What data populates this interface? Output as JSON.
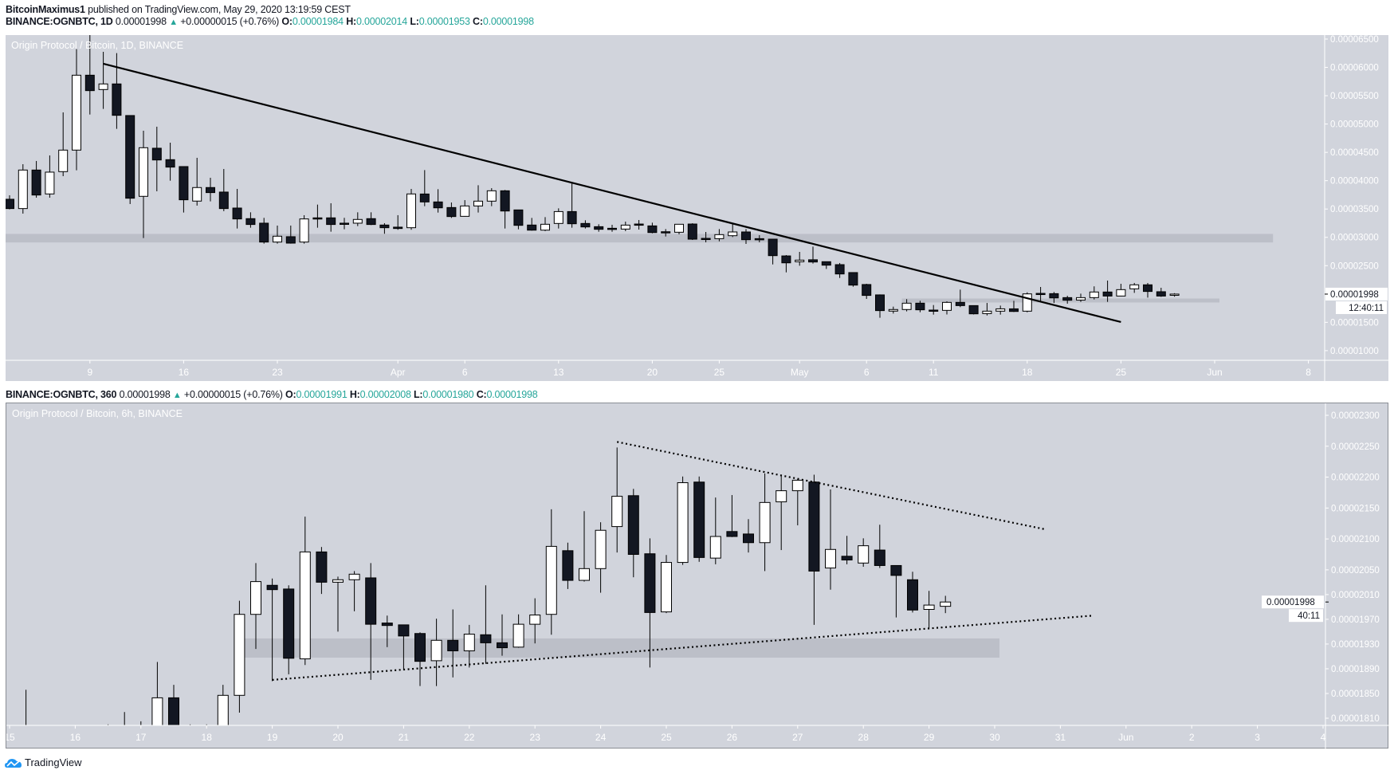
{
  "publish_line": {
    "author": "BitcoinMaximus1",
    "text": "published on TradingView.com, May 29, 2020 13:19:59 CEST"
  },
  "legend_1d": {
    "symbol": "BINANCE:OGNBTC, 1D",
    "last": "0.00001998",
    "change": "+0.00000015 (+0.76%)",
    "o_label": "O:",
    "o": "0.00001984",
    "h_label": "H:",
    "h": "0.00002014",
    "l_label": "L:",
    "l": "0.00001953",
    "c_label": "C:",
    "c": "0.00001998"
  },
  "legend_6h": {
    "symbol": "BINANCE:OGNBTC, 360",
    "last": "0.00001998",
    "change": "+0.00000015 (+0.76%)",
    "o_label": "O:",
    "o": "0.00001991",
    "h_label": "H:",
    "h": "0.00002008",
    "l_label": "L:",
    "l": "0.00001980",
    "c_label": "C:",
    "c": "0.00001998"
  },
  "footer": {
    "brand": "TradingView"
  },
  "colors": {
    "pane_bg": "#d1d4dc",
    "up_body": "#ffffff",
    "down_body": "#131722",
    "wick": "#000000",
    "band": "#b8bbc4",
    "value_green": "#26a69a"
  },
  "chart_data": [
    {
      "type": "candlestick",
      "title": "Origin Protocol / Bitcoin, 1D, BINANCE",
      "price_scale": 1e-08,
      "ylim": [
        1000,
        6500
      ],
      "y_ticks": [
        "0.00006500",
        "0.00006000",
        "0.00005500",
        "0.00005000",
        "0.00004500",
        "0.00004000",
        "0.00003500",
        "0.00003000",
        "0.00002500",
        "0.00001500",
        "0.00001000"
      ],
      "x_ticks": [
        {
          "label": "9",
          "i": 6
        },
        {
          "label": "16",
          "i": 13
        },
        {
          "label": "23",
          "i": 20
        },
        {
          "label": "Apr",
          "i": 29
        },
        {
          "label": "6",
          "i": 34
        },
        {
          "label": "13",
          "i": 41
        },
        {
          "label": "20",
          "i": 48
        },
        {
          "label": "25",
          "i": 53
        },
        {
          "label": "May",
          "i": 59
        },
        {
          "label": "6",
          "i": 64
        },
        {
          "label": "11",
          "i": 69
        },
        {
          "label": "18",
          "i": 76
        },
        {
          "label": "25",
          "i": 83
        },
        {
          "label": "Jun",
          "i": 90
        },
        {
          "label": "8",
          "i": 97
        }
      ],
      "first_candle": "Mar 3",
      "candles_ohlc": [
        [
          3672,
          3743,
          3494,
          3508
        ],
        [
          3508,
          4291,
          3419,
          4188
        ],
        [
          4188,
          4348,
          3700,
          3747
        ],
        [
          3766,
          4446,
          3700,
          4151
        ],
        [
          4160,
          5206,
          4080,
          4540
        ],
        [
          4540,
          6322,
          4184,
          5862
        ],
        [
          5862,
          6580,
          5168,
          5590
        ],
        [
          5609,
          6275,
          5267,
          5708
        ],
        [
          5708,
          6252,
          4915,
          5154
        ],
        [
          5150,
          5150,
          3588,
          3691
        ],
        [
          3724,
          4882,
          2988,
          4582
        ],
        [
          4573,
          4953,
          3813,
          4366
        ],
        [
          4371,
          4671,
          4000,
          4240
        ],
        [
          4249,
          4249,
          3438,
          3663
        ],
        [
          3640,
          4404,
          3560,
          3879
        ],
        [
          3879,
          4052,
          3635,
          3790
        ],
        [
          3799,
          4207,
          3462,
          3508
        ],
        [
          3517,
          3855,
          3156,
          3325
        ],
        [
          3330,
          3442,
          3170,
          3227
        ],
        [
          3250,
          3344,
          2889,
          2917
        ],
        [
          2917,
          3208,
          2889,
          3020
        ],
        [
          3011,
          3208,
          2889,
          2898
        ],
        [
          2917,
          3391,
          2889,
          3325
        ],
        [
          3344,
          3578,
          3170,
          3325
        ],
        [
          3344,
          3602,
          3100,
          3227
        ],
        [
          3250,
          3344,
          3142,
          3231
        ],
        [
          3250,
          3442,
          3198,
          3316
        ],
        [
          3330,
          3442,
          3217,
          3227
        ],
        [
          3217,
          3250,
          3063,
          3170
        ],
        [
          3180,
          3391,
          3133,
          3156
        ],
        [
          3170,
          3855,
          3133,
          3766
        ],
        [
          3765,
          4187,
          3550,
          3625
        ],
        [
          3625,
          3850,
          3437,
          3521
        ],
        [
          3526,
          3615,
          3343,
          3367
        ],
        [
          3371,
          3657,
          3367,
          3554
        ],
        [
          3554,
          3920,
          3437,
          3639
        ],
        [
          3639,
          3868,
          3550,
          3822
        ],
        [
          3822,
          3836,
          3156,
          3465
        ],
        [
          3484,
          3484,
          3142,
          3212
        ],
        [
          3217,
          3343,
          3118,
          3127
        ],
        [
          3127,
          3357,
          3109,
          3231
        ],
        [
          3245,
          3512,
          3156,
          3455
        ],
        [
          3455,
          3976,
          3170,
          3240
        ],
        [
          3245,
          3301,
          3156,
          3184
        ],
        [
          3188,
          3231,
          3099,
          3142
        ],
        [
          3160,
          3221,
          3099,
          3146
        ],
        [
          3146,
          3277,
          3109,
          3216
        ],
        [
          3235,
          3306,
          3137,
          3217
        ],
        [
          3202,
          3259,
          3071,
          3085
        ],
        [
          3099,
          3146,
          3015,
          3090
        ],
        [
          3090,
          3231,
          3052,
          3231
        ],
        [
          3235,
          3249,
          2954,
          2968
        ],
        [
          2982,
          3095,
          2912,
          2973
        ],
        [
          2977,
          3146,
          2930,
          3048
        ],
        [
          3029,
          3249,
          3005,
          3095
        ],
        [
          3095,
          3146,
          2884,
          2959
        ],
        [
          2977,
          3038,
          2912,
          2968
        ],
        [
          2968,
          2968,
          2522,
          2677
        ],
        [
          2672,
          2687,
          2382,
          2550
        ],
        [
          2569,
          2743,
          2499,
          2598
        ],
        [
          2604,
          2837,
          2537,
          2565
        ],
        [
          2570,
          2570,
          2442,
          2509
        ],
        [
          2518,
          2547,
          2283,
          2354
        ],
        [
          2378,
          2378,
          2129,
          2157
        ],
        [
          2167,
          2180,
          1913,
          1975
        ],
        [
          1984,
          1992,
          1580,
          1707
        ],
        [
          1698,
          1777,
          1655,
          1726
        ],
        [
          1726,
          1909,
          1693,
          1838
        ],
        [
          1838,
          1880,
          1678,
          1721
        ],
        [
          1716,
          1805,
          1636,
          1706
        ],
        [
          1711,
          1871,
          1639,
          1852
        ],
        [
          1852,
          2077,
          1768,
          1795
        ],
        [
          1795,
          1795,
          1639,
          1650
        ],
        [
          1654,
          1842,
          1621,
          1697
        ],
        [
          1697,
          1795,
          1636,
          1738
        ],
        [
          1738,
          1880,
          1682,
          1692
        ],
        [
          1697,
          2030,
          1677,
          2002
        ],
        [
          2011,
          2124,
          1852,
          2002
        ],
        [
          2006,
          2035,
          1842,
          1931
        ],
        [
          1936,
          1968,
          1829,
          1890
        ],
        [
          1893,
          2006,
          1861,
          1936
        ],
        [
          1936,
          2135,
          1903,
          2035
        ],
        [
          2035,
          2237,
          1861,
          1964
        ],
        [
          1964,
          2180,
          1959,
          2077
        ],
        [
          2091,
          2195,
          2020,
          2162
        ],
        [
          2162,
          2195,
          1936,
          2045
        ],
        [
          2040,
          2110,
          1950,
          1964
        ],
        [
          1984,
          2014,
          1953,
          1998
        ]
      ],
      "trendlines": [
        {
          "style": "solid",
          "from": {
            "i": 7,
            "p": 6064
          },
          "to": {
            "i": 83,
            "p": 1505
          }
        }
      ],
      "zones": [
        {
          "from_i": 0,
          "to_i": 94,
          "low": 2910,
          "high": 3060
        },
        {
          "from_i": 67,
          "to_i": 90,
          "low": 1850,
          "high": 1920
        }
      ],
      "last_price": {
        "value": 1998,
        "label": "0.00001998",
        "countdown": "12:40:11"
      }
    },
    {
      "type": "candlestick",
      "title": "Origin Protocol / Bitcoin, 6h, BINANCE",
      "price_scale": 1e-08,
      "ylim": [
        1800,
        2310
      ],
      "y_ticks": [
        "0.00002300",
        "0.00002250",
        "0.00002200",
        "0.00002150",
        "0.00002100",
        "0.00002050",
        "0.00002010",
        "0.00001970",
        "0.00001930",
        "0.00001890",
        "0.00001850",
        "0.00001810"
      ],
      "x_ticks": [
        {
          "label": "15",
          "k": 0
        },
        {
          "label": "16",
          "k": 4
        },
        {
          "label": "17",
          "k": 8
        },
        {
          "label": "18",
          "k": 12
        },
        {
          "label": "19",
          "k": 16
        },
        {
          "label": "20",
          "k": 20
        },
        {
          "label": "21",
          "k": 24
        },
        {
          "label": "22",
          "k": 28
        },
        {
          "label": "23",
          "k": 32
        },
        {
          "label": "24",
          "k": 36
        },
        {
          "label": "25",
          "k": 40
        },
        {
          "label": "26",
          "k": 44
        },
        {
          "label": "27",
          "k": 48
        },
        {
          "label": "28",
          "k": 52
        },
        {
          "label": "29",
          "k": 56
        },
        {
          "label": "30",
          "k": 60
        },
        {
          "label": "31",
          "k": 64
        },
        {
          "label": "Jun",
          "k": 68
        },
        {
          "label": "2",
          "k": 72
        },
        {
          "label": "3",
          "k": 76
        },
        {
          "label": "4",
          "k": 80
        }
      ],
      "first_candle": "May 15 00:00",
      "candles_ohlc": [
        [
          1780,
          1790,
          1750,
          1770
        ],
        [
          1770,
          1856,
          1760,
          1790
        ],
        [
          1790,
          1795,
          1760,
          1780
        ],
        [
          1780,
          1790,
          1750,
          1770
        ],
        [
          1770,
          1790,
          1750,
          1775
        ],
        [
          1775,
          1795,
          1760,
          1780
        ],
        [
          1780,
          1800,
          1765,
          1785
        ],
        [
          1785,
          1820,
          1770,
          1790
        ],
        [
          1790,
          1805,
          1775,
          1795
        ],
        [
          1795,
          1901,
          1785,
          1843
        ],
        [
          1843,
          1864,
          1780,
          1790
        ],
        [
          1790,
          1800,
          1770,
          1785
        ],
        [
          1785,
          1800,
          1775,
          1795
        ],
        [
          1795,
          1864,
          1790,
          1847
        ],
        [
          1847,
          2000,
          1819,
          1978
        ],
        [
          1978,
          2061,
          1922,
          2031
        ],
        [
          2025,
          2036,
          1870,
          2018
        ],
        [
          2019,
          2025,
          1881,
          1907
        ],
        [
          1906,
          2136,
          1896,
          2079
        ],
        [
          2079,
          2087,
          2011,
          2030
        ],
        [
          2030,
          2039,
          1950,
          2034
        ],
        [
          2034,
          2048,
          1983,
          2043
        ],
        [
          2037,
          2061,
          1872,
          1962
        ],
        [
          1964,
          1976,
          1925,
          1960
        ],
        [
          1961,
          1961,
          1888,
          1943
        ],
        [
          1947,
          1949,
          1862,
          1902
        ],
        [
          1903,
          1971,
          1862,
          1936
        ],
        [
          1936,
          1986,
          1876,
          1919
        ],
        [
          1919,
          1961,
          1892,
          1946
        ],
        [
          1945,
          2025,
          1898,
          1932
        ],
        [
          1932,
          1978,
          1911,
          1924
        ],
        [
          1925,
          1978,
          1924,
          1962
        ],
        [
          1962,
          2004,
          1931,
          1977
        ],
        [
          1978,
          2148,
          1945,
          2088
        ],
        [
          2081,
          2094,
          2019,
          2033
        ],
        [
          2033,
          2145,
          2031,
          2052
        ],
        [
          2052,
          2127,
          2013,
          2114
        ],
        [
          2120,
          2248,
          2078,
          2169
        ],
        [
          2170,
          2181,
          2038,
          2075
        ],
        [
          2076,
          2101,
          1892,
          1981
        ],
        [
          1982,
          2074,
          1980,
          2062
        ],
        [
          2062,
          2201,
          2058,
          2191
        ],
        [
          2192,
          2201,
          2063,
          2070
        ],
        [
          2069,
          2167,
          2059,
          2104
        ],
        [
          2112,
          2171,
          2103,
          2104
        ],
        [
          2108,
          2132,
          2078,
          2094
        ],
        [
          2094,
          2206,
          2048,
          2159
        ],
        [
          2160,
          2204,
          2082,
          2178
        ],
        [
          2178,
          2197,
          2122,
          2195
        ],
        [
          2192,
          2204,
          1961,
          2048
        ],
        [
          2053,
          2180,
          2018,
          2083
        ],
        [
          2072,
          2105,
          2059,
          2066
        ],
        [
          2061,
          2101,
          2055,
          2089
        ],
        [
          2082,
          2123,
          2053,
          2057
        ],
        [
          2057,
          2057,
          1973,
          2041
        ],
        [
          2034,
          2047,
          1981,
          1985
        ],
        [
          1986,
          2016,
          1955,
          1993
        ],
        [
          1991,
          2008,
          1980,
          1998
        ]
      ],
      "trendlines": [
        {
          "style": "dotted",
          "from": {
            "k": 37,
            "p": 2257
          },
          "to": {
            "k": 63,
            "p": 2116
          }
        },
        {
          "style": "dotted",
          "from": {
            "k": 16,
            "p": 1872
          },
          "to": {
            "k": 66,
            "p": 1976
          }
        }
      ],
      "zones": [
        {
          "from_k": 14,
          "to_k": 60,
          "low": 1908,
          "high": 1939
        }
      ],
      "last_price": {
        "value": 1998,
        "label": "0.00001998",
        "countdown": "40:11"
      }
    }
  ]
}
